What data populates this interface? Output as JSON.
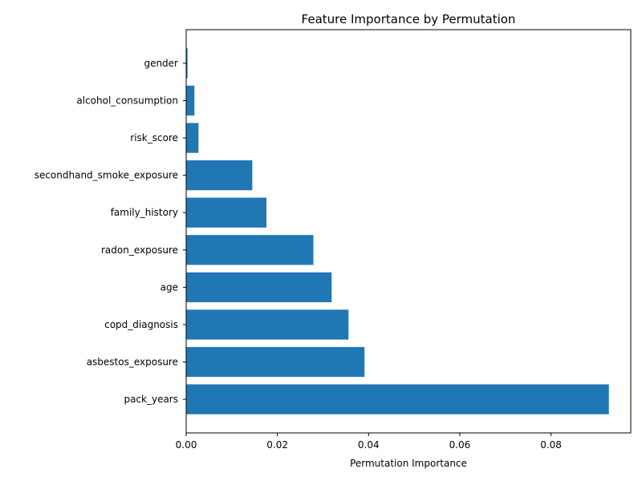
{
  "chart_data": {
    "type": "bar",
    "orientation": "horizontal",
    "title": "Feature Importance by Permutation",
    "xlabel": "Permutation Importance",
    "ylabel": "",
    "categories": [
      "pack_years",
      "asbestos_exposure",
      "copd_diagnosis",
      "age",
      "radon_exposure",
      "family_history",
      "secondhand_smoke_exposure",
      "risk_score",
      "alcohol_consumption",
      "gender"
    ],
    "values": [
      0.0927,
      0.0391,
      0.0356,
      0.0319,
      0.0279,
      0.0176,
      0.0145,
      0.0027,
      0.0018,
      0.0003
    ],
    "xlim": [
      0,
      0.0975
    ],
    "xticks": [
      0.0,
      0.02,
      0.04,
      0.06,
      0.08
    ],
    "xtick_labels": [
      "0.00",
      "0.02",
      "0.04",
      "0.06",
      "0.08"
    ],
    "grid": false,
    "bar_color": "#1f77b4"
  }
}
